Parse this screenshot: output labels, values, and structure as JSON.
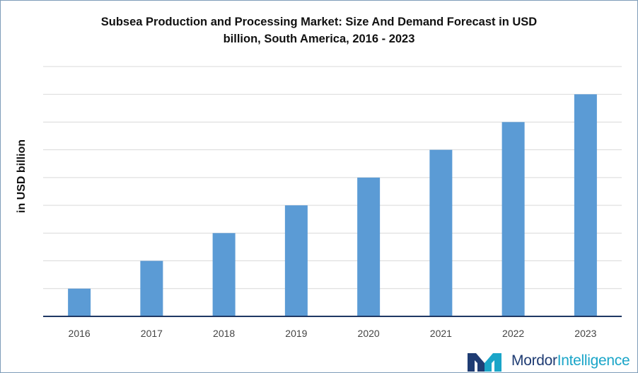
{
  "chart_data": {
    "type": "bar",
    "title_lines": [
      "Subsea Production and Processing Market: Size And Demand Forecast in USD",
      "billion, South America, 2016 - 2023"
    ],
    "ylabel": "in USD billion",
    "xlabel": "",
    "categories": [
      "2016",
      "2017",
      "2018",
      "2019",
      "2020",
      "2021",
      "2022",
      "2023"
    ],
    "values": [
      1,
      2,
      3,
      4,
      5,
      6,
      7,
      8
    ],
    "ylim": [
      0,
      9
    ],
    "y_tick_labels_shown": false,
    "grid": true,
    "bar_color": "#5b9bd5",
    "grid_color": "#d9d9d9",
    "axis_color": "#1f3864"
  },
  "branding": {
    "name_part1": "Mordor",
    "name_part2": "Intelligence",
    "logo_colors": [
      "#1f3c73",
      "#1aa5c8"
    ]
  }
}
